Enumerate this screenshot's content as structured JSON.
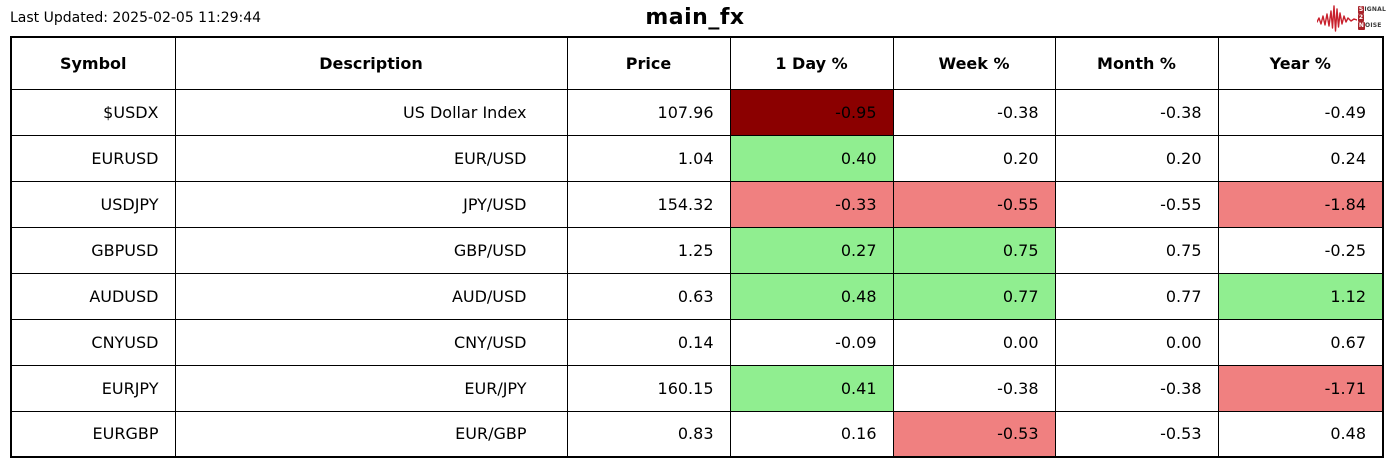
{
  "header": {
    "last_updated": "Last Updated: 2025-02-05 11:29:44",
    "title": "main_fx",
    "logo": {
      "signal_initial": "S",
      "signal_rest": "IGNAL",
      "middle": "2",
      "noise_initial": "N",
      "noise_rest": "OISE",
      "wave_icon": "signal-waveform-icon",
      "wave_color": "#c8202c"
    }
  },
  "colors": {
    "strong_negative": "#8b0000",
    "negative": "#f08080",
    "positive": "#90ee90",
    "neutral": "#ffffff"
  },
  "table": {
    "columns": [
      "Symbol",
      "Description",
      "Price",
      "1 Day %",
      "Week %",
      "Month %",
      "Year %"
    ],
    "rows": [
      {
        "symbol": "$USDX",
        "description": "US Dollar Index",
        "price": "107.96",
        "changes": [
          {
            "value": "-0.95",
            "bg": "strong_negative"
          },
          {
            "value": "-0.38",
            "bg": "neutral"
          },
          {
            "value": "-0.38",
            "bg": "neutral"
          },
          {
            "value": "-0.49",
            "bg": "neutral"
          }
        ]
      },
      {
        "symbol": "EURUSD",
        "description": "EUR/USD",
        "price": "1.04",
        "changes": [
          {
            "value": "0.40",
            "bg": "positive"
          },
          {
            "value": "0.20",
            "bg": "neutral"
          },
          {
            "value": "0.20",
            "bg": "neutral"
          },
          {
            "value": "0.24",
            "bg": "neutral"
          }
        ]
      },
      {
        "symbol": "USDJPY",
        "description": "JPY/USD",
        "price": "154.32",
        "changes": [
          {
            "value": "-0.33",
            "bg": "negative"
          },
          {
            "value": "-0.55",
            "bg": "negative"
          },
          {
            "value": "-0.55",
            "bg": "neutral"
          },
          {
            "value": "-1.84",
            "bg": "negative"
          }
        ]
      },
      {
        "symbol": "GBPUSD",
        "description": "GBP/USD",
        "price": "1.25",
        "changes": [
          {
            "value": "0.27",
            "bg": "positive"
          },
          {
            "value": "0.75",
            "bg": "positive"
          },
          {
            "value": "0.75",
            "bg": "neutral"
          },
          {
            "value": "-0.25",
            "bg": "neutral"
          }
        ]
      },
      {
        "symbol": "AUDUSD",
        "description": "AUD/USD",
        "price": "0.63",
        "changes": [
          {
            "value": "0.48",
            "bg": "positive"
          },
          {
            "value": "0.77",
            "bg": "positive"
          },
          {
            "value": "0.77",
            "bg": "neutral"
          },
          {
            "value": "1.12",
            "bg": "positive"
          }
        ]
      },
      {
        "symbol": "CNYUSD",
        "description": "CNY/USD",
        "price": "0.14",
        "changes": [
          {
            "value": "-0.09",
            "bg": "neutral"
          },
          {
            "value": "0.00",
            "bg": "neutral"
          },
          {
            "value": "0.00",
            "bg": "neutral"
          },
          {
            "value": "0.67",
            "bg": "neutral"
          }
        ]
      },
      {
        "symbol": "EURJPY",
        "description": "EUR/JPY",
        "price": "160.15",
        "changes": [
          {
            "value": "0.41",
            "bg": "positive"
          },
          {
            "value": "-0.38",
            "bg": "neutral"
          },
          {
            "value": "-0.38",
            "bg": "neutral"
          },
          {
            "value": "-1.71",
            "bg": "negative"
          }
        ]
      },
      {
        "symbol": "EURGBP",
        "description": "EUR/GBP",
        "price": "0.83",
        "changes": [
          {
            "value": "0.16",
            "bg": "neutral"
          },
          {
            "value": "-0.53",
            "bg": "negative"
          },
          {
            "value": "-0.53",
            "bg": "neutral"
          },
          {
            "value": "0.48",
            "bg": "neutral"
          }
        ]
      }
    ]
  }
}
